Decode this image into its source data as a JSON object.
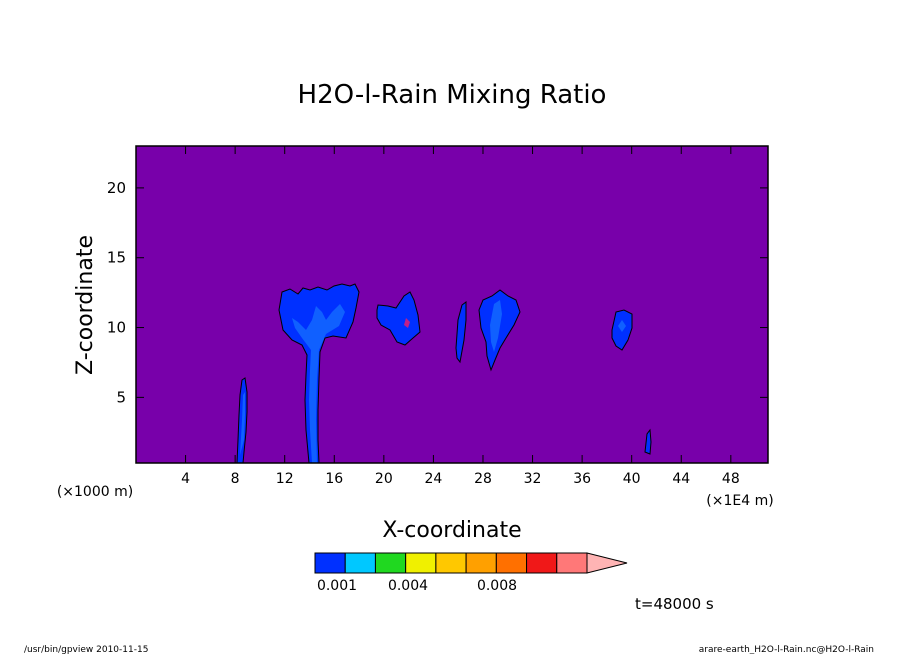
{
  "chart_data": {
    "type": "heatmap",
    "title": "H2O-l-Rain Mixing Ratio",
    "xlabel": "X-coordinate",
    "ylabel": "Z-coordinate",
    "x_ticks": [
      "4",
      "8",
      "12",
      "16",
      "20",
      "24",
      "28",
      "32",
      "36",
      "40",
      "44",
      "48"
    ],
    "x_tick_values": [
      4,
      8,
      12,
      16,
      20,
      24,
      28,
      32,
      36,
      40,
      44,
      48
    ],
    "y_ticks": [
      "5",
      "10",
      "15",
      "20"
    ],
    "y_tick_values": [
      5,
      10,
      15,
      20
    ],
    "xlim": [
      0,
      51
    ],
    "ylim": [
      0.3,
      23
    ],
    "x_scale_label": "(×1000 m)",
    "x_unit_label": "(×1E4 m)",
    "colorbar": {
      "labels": [
        "0.001",
        "0.004",
        "0.008"
      ],
      "colors": [
        "#0030ff",
        "#00c8ff",
        "#20d820",
        "#f0f000",
        "#ffc800",
        "#ffa000",
        "#ff7000",
        "#f01818",
        "#ff7878",
        "#ffb4b4"
      ],
      "background_color": "#7800aa"
    },
    "time_label": "t=48000 s",
    "footer_left": "/usr/bin/gpview  2010-11-15",
    "footer_right": "arare-earth_H2O-l-Rain.nc@H2O-l-Rain"
  }
}
